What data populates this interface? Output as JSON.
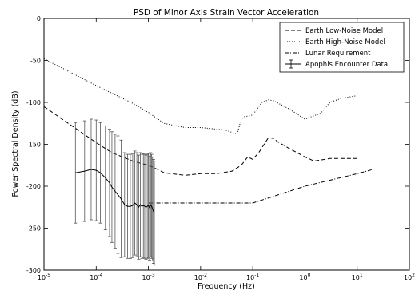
{
  "chart_data": {
    "type": "line",
    "title": "PSD of Minor Axis Strain Vector Acceleration",
    "xlabel": "Frequency (Hz)",
    "ylabel": "Power Spectral Density (dB)",
    "xscale": "log",
    "xlim": [
      1e-05,
      100
    ],
    "ylim": [
      -300,
      0
    ],
    "x_ticks": [
      {
        "value": 1e-05,
        "base": "10",
        "exp": "-5"
      },
      {
        "value": 0.0001,
        "base": "10",
        "exp": "-4"
      },
      {
        "value": 0.001,
        "base": "10",
        "exp": "-3"
      },
      {
        "value": 0.01,
        "base": "10",
        "exp": "-2"
      },
      {
        "value": 0.1,
        "base": "10",
        "exp": "-1"
      },
      {
        "value": 1,
        "base": "10",
        "exp": "0"
      },
      {
        "value": 10,
        "base": "10",
        "exp": "1"
      },
      {
        "value": 100,
        "base": "10",
        "exp": "2"
      }
    ],
    "y_ticks": [
      0,
      -50,
      -100,
      -150,
      -200,
      -250,
      -300
    ],
    "grid": false,
    "legend_position": "top-right",
    "series": [
      {
        "name": "Earth Low-Noise Model",
        "style": "dashed",
        "color": "#000000",
        "x": [
          1e-05,
          0.0001,
          0.0002,
          0.0005,
          0.001,
          0.0015,
          0.002,
          0.005,
          0.01,
          0.02,
          0.04,
          0.06,
          0.08,
          0.1,
          0.13,
          0.2,
          0.25,
          0.3,
          0.5,
          1,
          1.5,
          3,
          5,
          10
        ],
        "y": [
          -105,
          -148,
          -160,
          -170,
          -175,
          -180,
          -184,
          -187,
          -185,
          -185,
          -182,
          -175,
          -165,
          -168,
          -160,
          -142,
          -143,
          -147,
          -155,
          -165,
          -170,
          -167,
          -167,
          -167
        ]
      },
      {
        "name": "Earth High-Noise Model",
        "style": "dotted",
        "color": "#000000",
        "x": [
          1e-05,
          0.0001,
          0.0005,
          0.001,
          0.002,
          0.005,
          0.01,
          0.03,
          0.05,
          0.06,
          0.07,
          0.1,
          0.15,
          0.2,
          0.25,
          0.5,
          1,
          2,
          3,
          5,
          10
        ],
        "y": [
          -48,
          -80,
          -101,
          -112,
          -125,
          -130,
          -130,
          -133,
          -138,
          -120,
          -117,
          -115,
          -100,
          -97,
          -98,
          -108,
          -120,
          -113,
          -100,
          -95,
          -92
        ]
      },
      {
        "name": "Lunar Requirement",
        "style": "dashdot",
        "color": "#000000",
        "x": [
          0.001,
          0.01,
          0.1,
          1,
          10,
          20
        ],
        "y": [
          -220,
          -220,
          -220,
          -200,
          -185,
          -180
        ]
      },
      {
        "name": "Apophis Encounter Data",
        "style": "solid-errorbar",
        "color": "#000000",
        "x": [
          4e-05,
          6e-05,
          8e-05,
          0.0001,
          0.00012,
          0.00015,
          0.00018,
          0.0002,
          0.00023,
          0.00026,
          0.0003,
          0.00035,
          0.0004,
          0.00045,
          0.0005,
          0.00055,
          0.0006,
          0.00065,
          0.0007,
          0.00075,
          0.0008,
          0.00085,
          0.0009,
          0.00095,
          0.001,
          0.00105,
          0.0011,
          0.00115,
          0.0012,
          0.00125,
          0.0013
        ],
        "y": [
          -184,
          -182,
          -180,
          -181,
          -184,
          -190,
          -196,
          -201,
          -206,
          -210,
          -215,
          -222,
          -224,
          -224,
          -223,
          -220,
          -222,
          -225,
          -222,
          -224,
          -223,
          -224,
          -225,
          -224,
          -223,
          -226,
          -222,
          -224,
          -227,
          -230,
          -232
        ],
        "yerr": [
          60,
          60,
          60,
          60,
          60,
          62,
          64,
          66,
          68,
          70,
          70,
          62,
          62,
          62,
          62,
          62,
          62,
          62,
          62,
          62,
          62,
          62,
          62,
          62,
          62,
          62,
          62,
          62,
          62,
          62,
          62
        ]
      }
    ]
  }
}
